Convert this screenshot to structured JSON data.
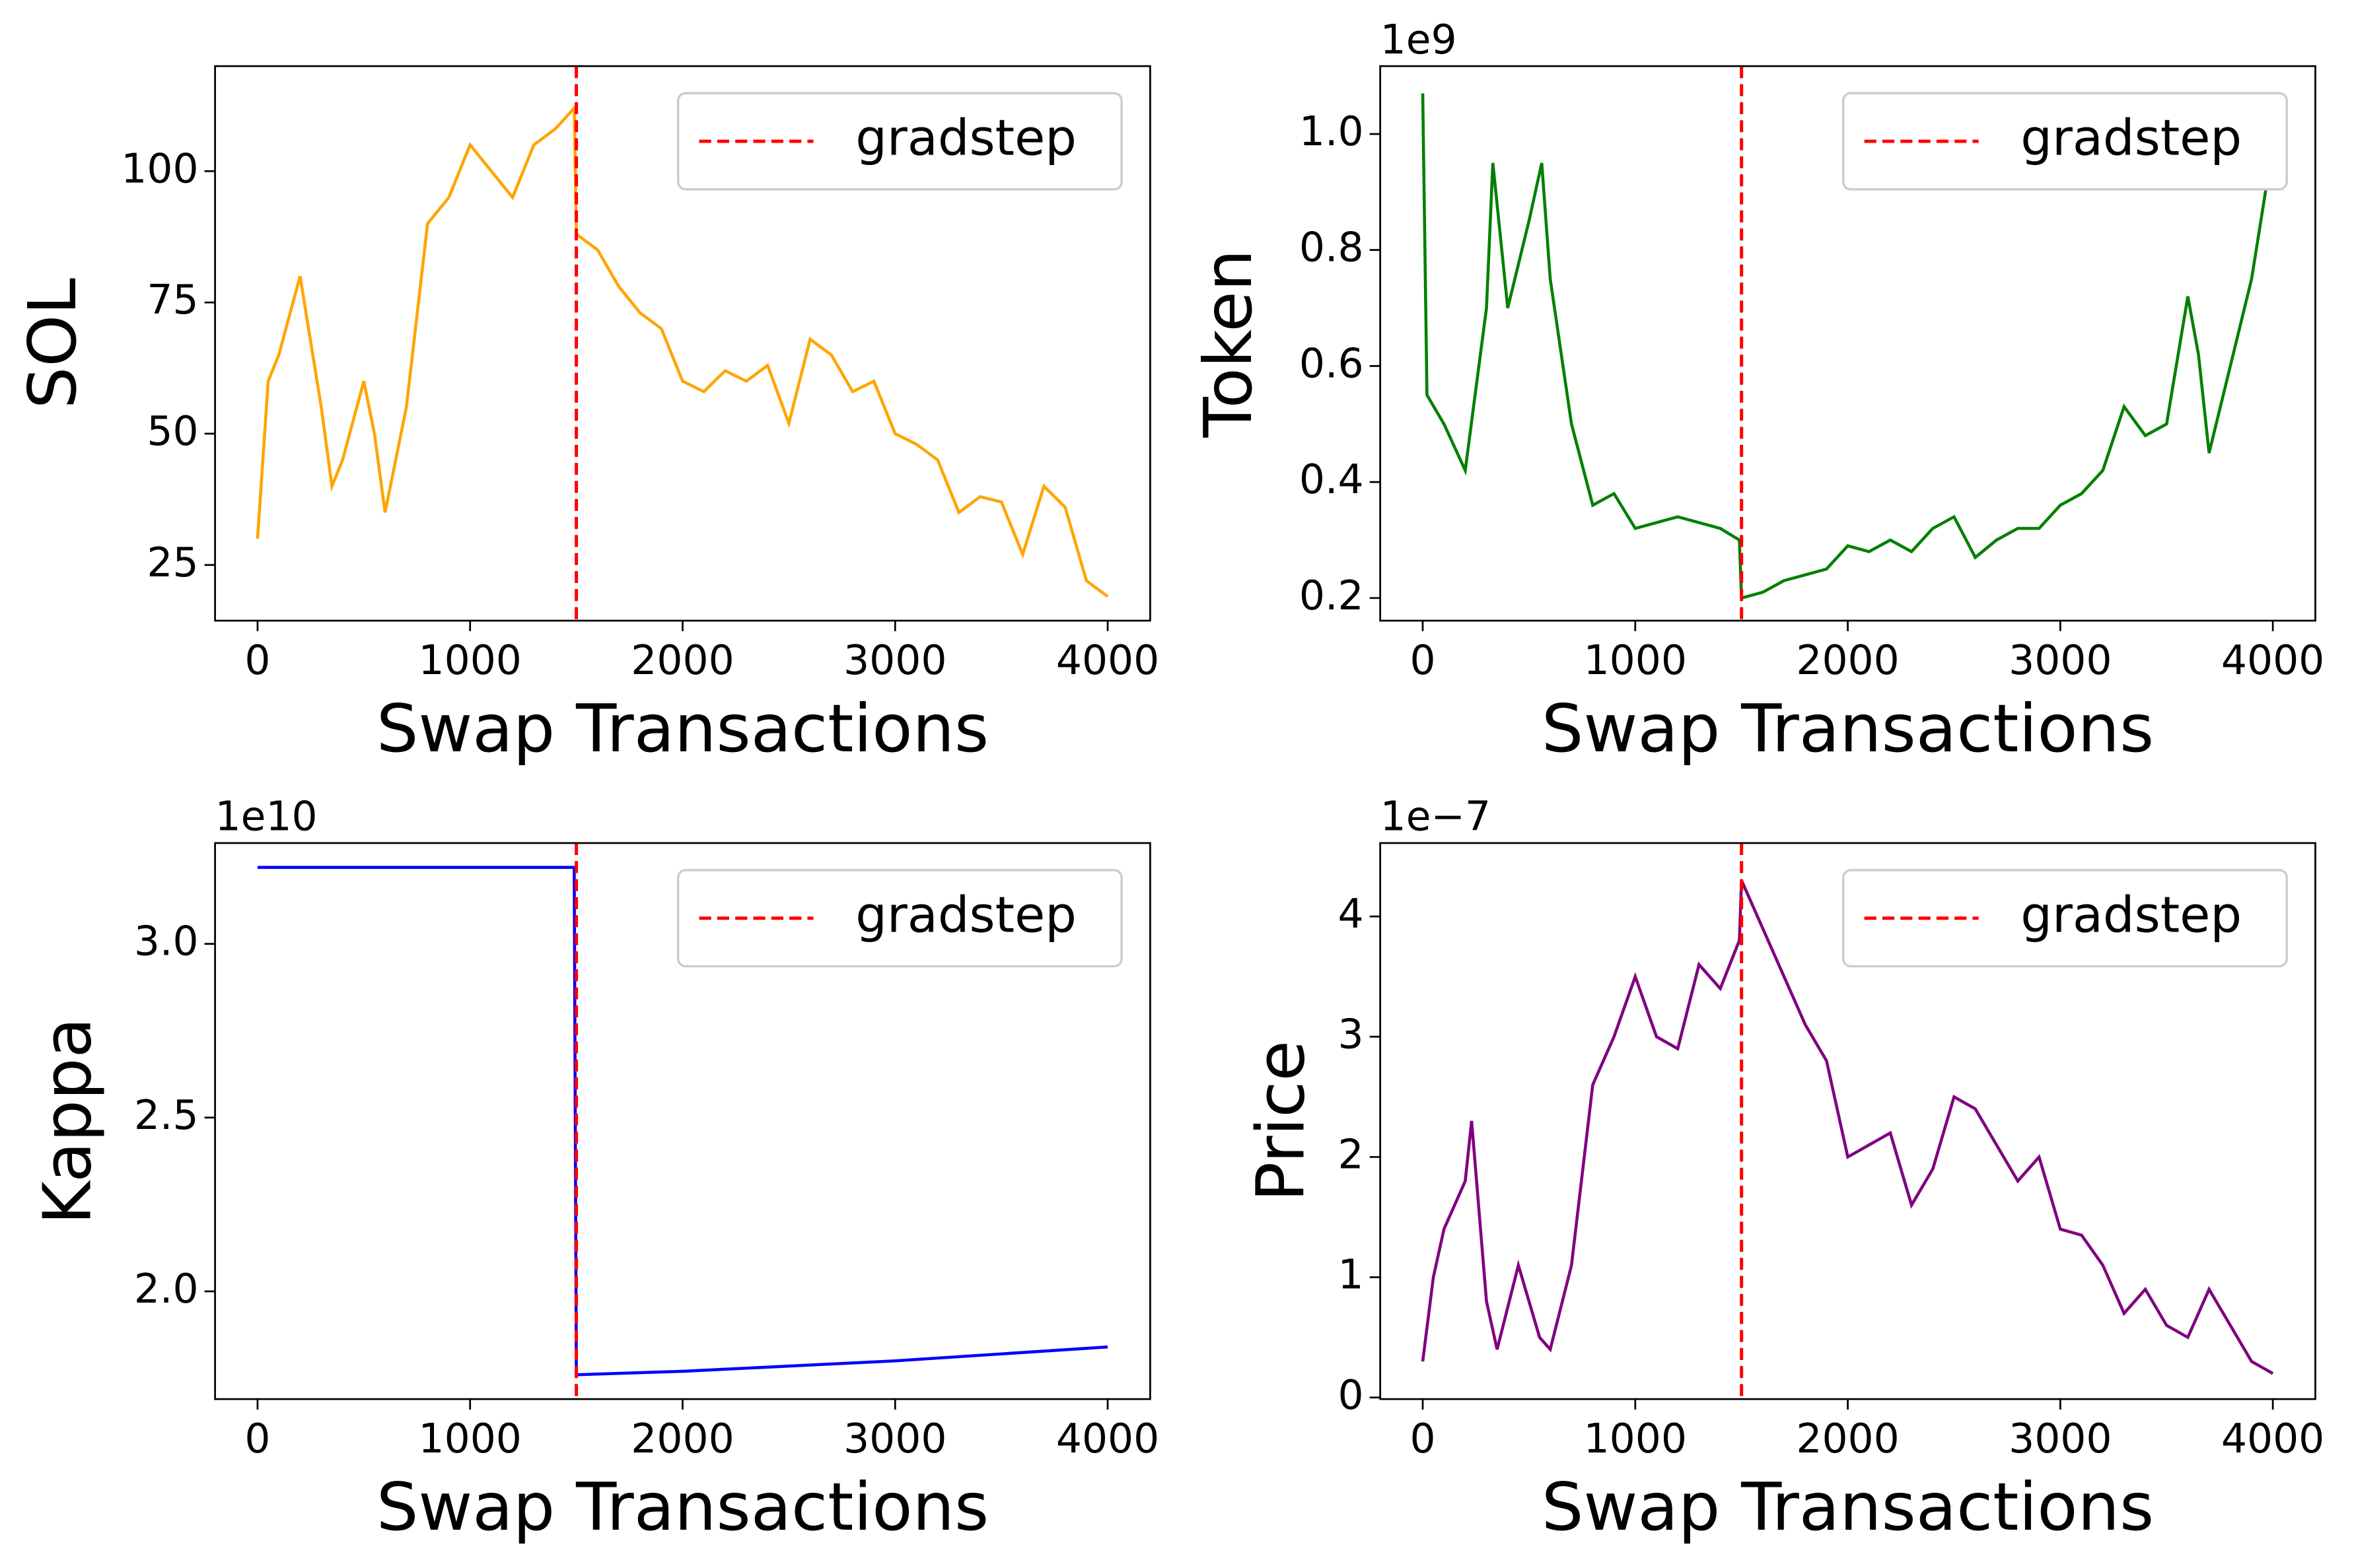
{
  "chart_data": [
    {
      "type": "line",
      "xlabel": "Swap Transactions",
      "ylabel": "SOL",
      "color": "#ffa500",
      "x": [
        0,
        50,
        100,
        200,
        300,
        350,
        400,
        500,
        550,
        600,
        700,
        800,
        900,
        1000,
        1100,
        1200,
        1300,
        1400,
        1490,
        1500,
        1600,
        1700,
        1800,
        1900,
        2000,
        2100,
        2200,
        2300,
        2400,
        2500,
        2600,
        2700,
        2800,
        2900,
        3000,
        3100,
        3200,
        3300,
        3400,
        3500,
        3600,
        3700,
        3800,
        3900,
        4000
      ],
      "values": [
        30,
        60,
        65,
        80,
        55,
        40,
        45,
        60,
        50,
        35,
        55,
        90,
        95,
        105,
        100,
        95,
        105,
        108,
        112,
        88,
        85,
        78,
        73,
        70,
        60,
        58,
        62,
        60,
        63,
        52,
        68,
        65,
        58,
        60,
        50,
        48,
        45,
        35,
        38,
        37,
        27,
        40,
        36,
        22,
        19
      ],
      "xlim": [
        -200,
        4200
      ],
      "xticks": [
        0,
        1000,
        2000,
        3000,
        4000
      ],
      "ylim": [
        14.4,
        120
      ],
      "yticks": [
        25,
        50,
        75,
        100
      ],
      "vline": {
        "label": "gradstep",
        "x": 1500,
        "color": "#ff0000"
      },
      "legend": "upper right"
    },
    {
      "type": "line",
      "xlabel": "Swap Transactions",
      "ylabel": "Token",
      "offset_text": "1e9",
      "color": "#008000",
      "x": [
        0,
        20,
        100,
        200,
        300,
        330,
        400,
        500,
        560,
        600,
        700,
        800,
        900,
        1000,
        1100,
        1200,
        1300,
        1400,
        1490,
        1500,
        1600,
        1700,
        1800,
        1900,
        2000,
        2100,
        2200,
        2300,
        2400,
        2500,
        2600,
        2700,
        2800,
        2900,
        3000,
        3100,
        3200,
        3300,
        3400,
        3500,
        3600,
        3650,
        3700,
        3800,
        3900,
        4000
      ],
      "values": [
        1.07,
        0.55,
        0.5,
        0.42,
        0.7,
        0.95,
        0.7,
        0.85,
        0.95,
        0.75,
        0.5,
        0.36,
        0.38,
        0.32,
        0.33,
        0.34,
        0.33,
        0.32,
        0.3,
        0.2,
        0.21,
        0.23,
        0.24,
        0.25,
        0.29,
        0.28,
        0.3,
        0.28,
        0.32,
        0.34,
        0.27,
        0.3,
        0.32,
        0.32,
        0.36,
        0.38,
        0.42,
        0.53,
        0.48,
        0.5,
        0.72,
        0.62,
        0.45,
        0.6,
        0.75,
        0.98
      ],
      "xlim": [
        -200,
        4200
      ],
      "xticks": [
        0,
        1000,
        2000,
        3000,
        4000
      ],
      "ylim": [
        0.161,
        1.117
      ],
      "yticks": [
        0.2,
        0.4,
        0.6,
        0.8,
        {
          "value": 1,
          "label": "1.0"
        }
      ],
      "vline": {
        "label": "gradstep",
        "x": 1500,
        "color": "#ff0000"
      },
      "legend": "upper right"
    },
    {
      "type": "line",
      "xlabel": "Swap Transactions",
      "ylabel": "Kappa",
      "offset_text": "1e10",
      "color": "#0000ff",
      "x": [
        0,
        1490,
        1500,
        2000,
        3000,
        4000
      ],
      "values": [
        3.22,
        3.22,
        1.76,
        1.77,
        1.8,
        1.84
      ],
      "xlim": [
        -200,
        4200
      ],
      "xticks": [
        0,
        1000,
        2000,
        3000,
        4000
      ],
      "ylim": [
        1.69,
        3.29
      ],
      "yticks": [
        {
          "value": 2,
          "label": "2.0"
        },
        2.5,
        {
          "value": 3,
          "label": "3.0"
        }
      ],
      "vline": {
        "label": "gradstep",
        "x": 1500,
        "color": "#ff0000"
      },
      "legend": "upper right"
    },
    {
      "type": "line",
      "xlabel": "Swap Transactions",
      "ylabel": "Price",
      "offset_text": "1e−7",
      "color": "#800080",
      "x": [
        0,
        50,
        100,
        200,
        230,
        300,
        350,
        450,
        550,
        600,
        700,
        800,
        900,
        1000,
        1100,
        1200,
        1300,
        1400,
        1490,
        1500,
        1600,
        1700,
        1800,
        1900,
        2000,
        2100,
        2200,
        2300,
        2400,
        2500,
        2600,
        2700,
        2800,
        2900,
        3000,
        3100,
        3200,
        3300,
        3400,
        3500,
        3600,
        3700,
        3800,
        3900,
        4000
      ],
      "values": [
        0.3,
        1.0,
        1.4,
        1.8,
        2.3,
        0.8,
        0.4,
        1.1,
        0.5,
        0.4,
        1.1,
        2.6,
        3.0,
        3.5,
        3.0,
        2.9,
        3.6,
        3.4,
        3.8,
        4.3,
        3.9,
        3.5,
        3.1,
        2.8,
        2.0,
        2.1,
        2.2,
        1.6,
        1.9,
        2.5,
        2.4,
        2.1,
        1.8,
        2.0,
        1.4,
        1.35,
        1.1,
        0.7,
        0.9,
        0.6,
        0.5,
        0.9,
        0.6,
        0.3,
        0.2
      ],
      "xlim": [
        -200,
        4200
      ],
      "xticks": [
        0,
        1000,
        2000,
        3000,
        4000
      ],
      "ylim": [
        -0.013,
        4.61
      ],
      "yticks": [
        0,
        1,
        2,
        3,
        4
      ],
      "vline": {
        "label": "gradstep",
        "x": 1500,
        "color": "#ff0000"
      },
      "legend": "upper right"
    }
  ]
}
